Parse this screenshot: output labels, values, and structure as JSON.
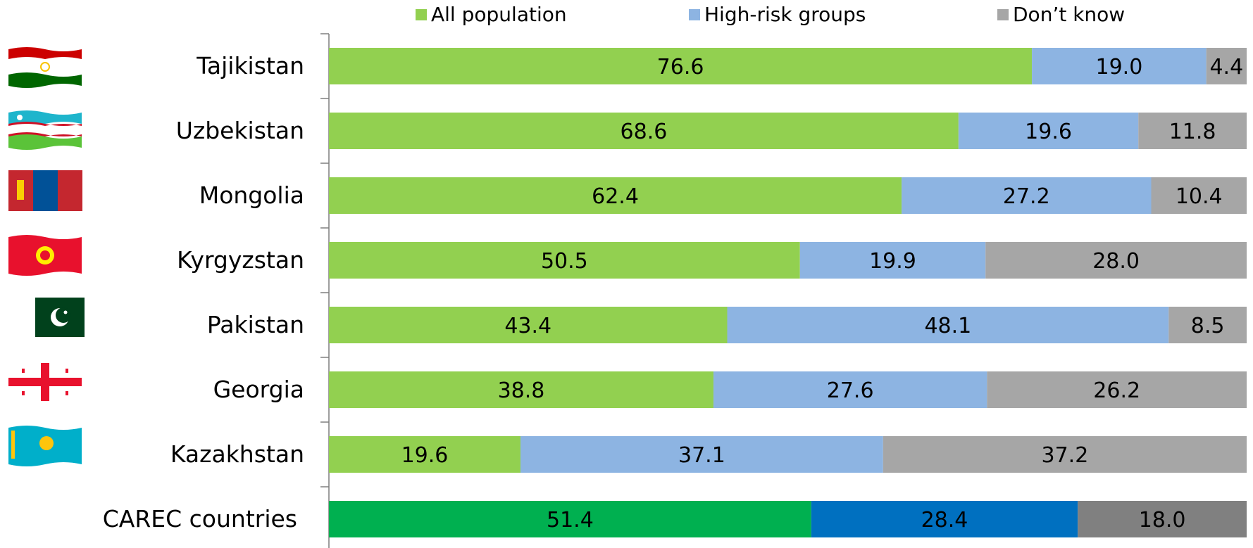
{
  "chart_data": {
    "type": "bar",
    "orientation": "horizontal",
    "stacked": true,
    "percent_stacked": true,
    "categories": [
      "Tajikistan",
      "Uzbekistan",
      "Mongolia",
      "Kyrgyzstan",
      "Pakistan",
      "Georgia",
      "Kazakhstan",
      "CAREC countries"
    ],
    "series": [
      {
        "name": "All population",
        "values": [
          76.6,
          68.6,
          62.4,
          50.5,
          43.4,
          38.8,
          19.6,
          51.4
        ],
        "color": "#92D050",
        "total_color": "#00B050"
      },
      {
        "name": "High-risk groups",
        "values": [
          19.0,
          19.6,
          27.2,
          19.9,
          48.1,
          27.6,
          37.1,
          28.4
        ],
        "color": "#8DB4E2",
        "total_color": "#0070C0"
      },
      {
        "name": "Don’t know",
        "values": [
          4.4,
          11.8,
          10.4,
          28.0,
          8.5,
          26.2,
          37.2,
          18.0
        ],
        "color": "#A6A6A6",
        "total_color": "#808080"
      }
    ],
    "legend_position": "top",
    "grid": false,
    "title": "",
    "xlabel": "",
    "ylabel": ""
  },
  "flags": [
    {
      "country": "Tajikistan",
      "icon": "tajikistan-flag-icon"
    },
    {
      "country": "Uzbekistan",
      "icon": "uzbekistan-flag-icon"
    },
    {
      "country": "Mongolia",
      "icon": "mongolia-flag-icon"
    },
    {
      "country": "Kyrgyzstan",
      "icon": "kyrgyzstan-flag-icon"
    },
    {
      "country": "Pakistan",
      "icon": "pakistan-flag-icon"
    },
    {
      "country": "Georgia",
      "icon": "georgia-flag-icon"
    },
    {
      "country": "Kazakhstan",
      "icon": "kazakhstan-flag-icon"
    }
  ]
}
